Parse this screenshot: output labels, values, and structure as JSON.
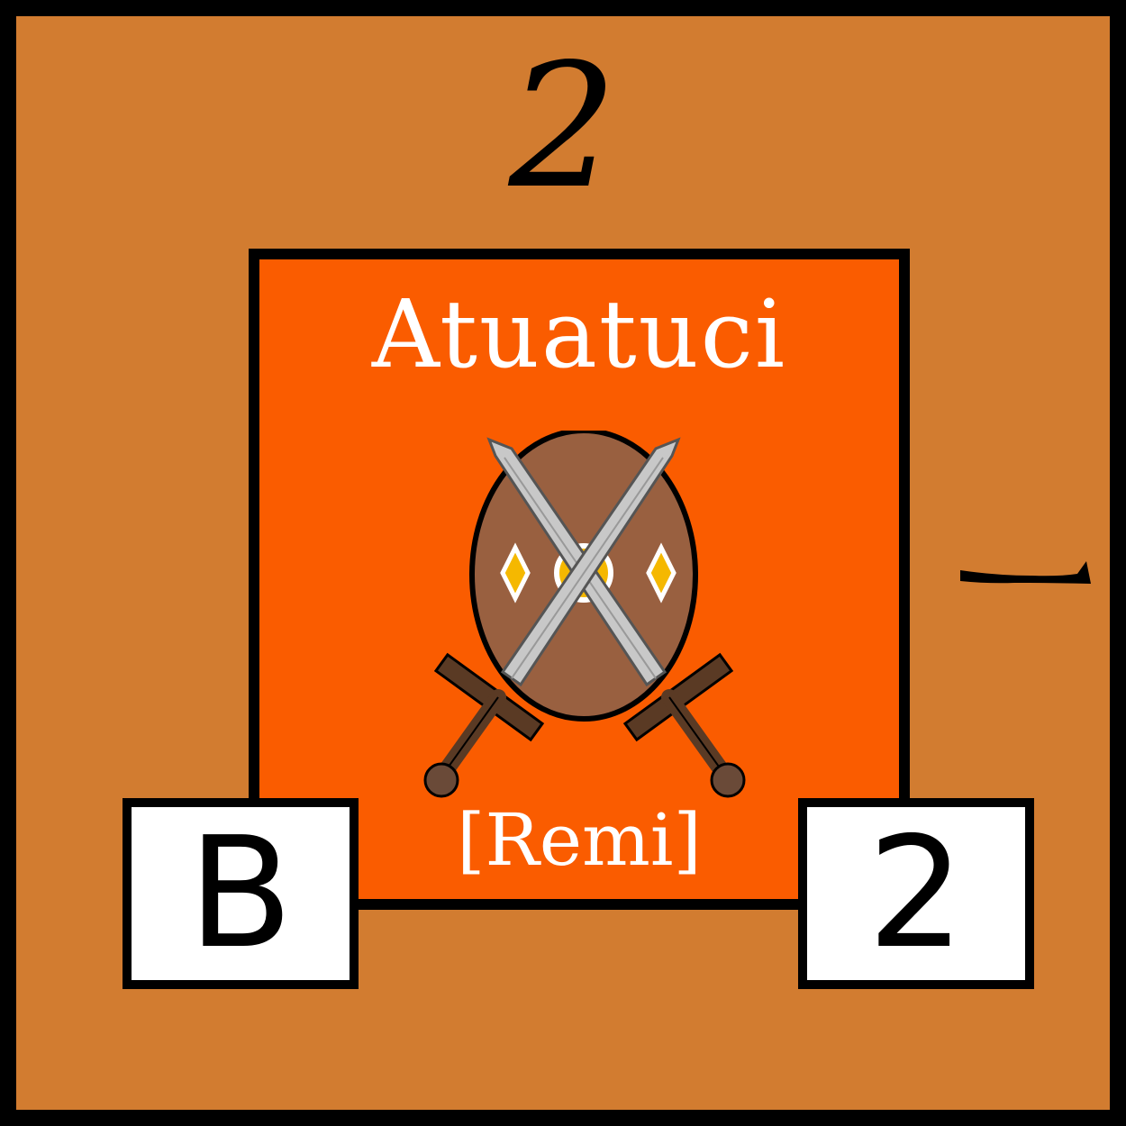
{
  "card": {
    "top_value": "2",
    "tribe_name": "Atuatuci",
    "ally_name": "[Remi]",
    "left_box_label": "B",
    "right_box_label": "2",
    "icons": [
      "shield-icon",
      "crossed-swords-icon",
      "dash-mark-icon"
    ],
    "colors": {
      "background": "#d27c30",
      "panel": "#fa5c00",
      "shield": "#996040",
      "blade": "#c8c8c8",
      "hilt": "#5a3a24",
      "gem": "#f5b800"
    }
  }
}
